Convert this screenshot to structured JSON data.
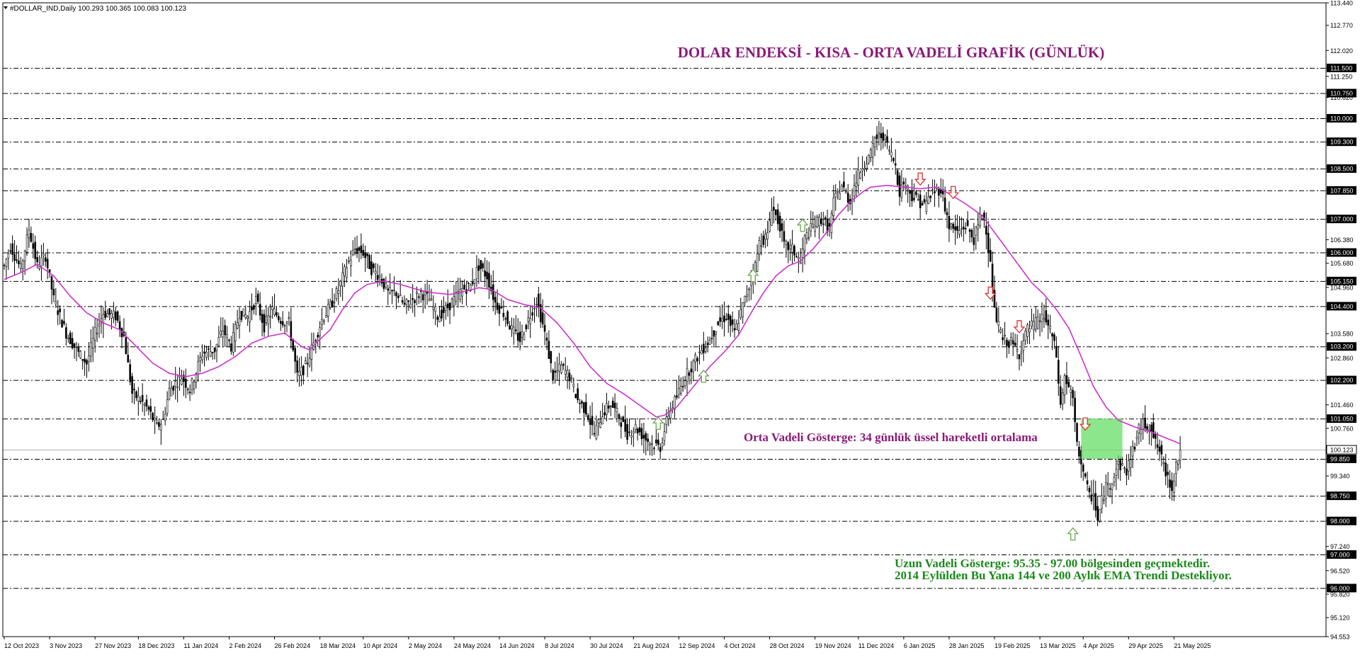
{
  "header": {
    "symbol_line": "#DOLLAR_IND,Daily  100.293 100.365 100.083 100.123"
  },
  "colors": {
    "background": "#ffffff",
    "candle": "#000000",
    "ema": "#cc33cc",
    "title": "#8b1a7a",
    "annotation_mid": "#8b1a7a",
    "annotation_long": "#1a8a1a",
    "up_arrow": "#6aa84f",
    "down_arrow": "#e03030",
    "box_fill": "#66dd66",
    "level_line": "#000000"
  },
  "chart_data": {
    "type": "candlestick",
    "symbol": "#DOLLAR_IND",
    "timeframe": "Daily",
    "title": "DOLAR ENDEKSİ - KISA - ORTA VADELİ GRAFİK (GÜNLÜK)",
    "ylim": [
      94.553,
      113.44
    ],
    "y_ticks": [
      "113.440",
      "112.770",
      "112.020",
      "111.500",
      "111.250",
      "110.750",
      "110.620",
      "110.000",
      "109.300",
      "108.500",
      "107.850",
      "107.000",
      "106.380",
      "106.000",
      "105.680",
      "105.150",
      "104.960",
      "104.400",
      "103.580",
      "103.200",
      "102.860",
      "102.200",
      "101.460",
      "101.050",
      "100.760",
      "100.123",
      "99.850",
      "99.340",
      "98.750",
      "98.000",
      "97.240",
      "97.000",
      "96.520",
      "96.000",
      "95.820",
      "95.120",
      "94.553"
    ],
    "x_ticks": [
      "12 Oct 2023",
      "3 Nov 2023",
      "27 Nov 2023",
      "18 Dec 2023",
      "11 Jan 2024",
      "2 Feb 2024",
      "26 Feb 2024",
      "18 Mar 2024",
      "10 Apr 2024",
      "2 May 2024",
      "24 May 2024",
      "14 Jun 2024",
      "8 Jul 2024",
      "30 Jul 2024",
      "21 Aug 2024",
      "12 Sep 2024",
      "4 Oct 2024",
      "28 Oct 2024",
      "19 Nov 2024",
      "11 Dec 2024",
      "6 Jan 2025",
      "28 Jan 2025",
      "19 Feb 2025",
      "13 Mar 2025",
      "4 Apr 2025",
      "29 Apr 2025",
      "21 May 2025"
    ],
    "levels": [
      111.5,
      110.75,
      110.0,
      109.3,
      108.5,
      107.85,
      107.0,
      106.0,
      105.15,
      104.4,
      103.2,
      102.2,
      101.05,
      99.85,
      98.75,
      98.0,
      97.0,
      96.0
    ],
    "current_price": 100.123,
    "price_path": [
      [
        0,
        105.6
      ],
      [
        3,
        106.2
      ],
      [
        8,
        105.5
      ],
      [
        12,
        106.7
      ],
      [
        16,
        105.6
      ],
      [
        20,
        105.9
      ],
      [
        24,
        104.6
      ],
      [
        30,
        103.6
      ],
      [
        36,
        103.0
      ],
      [
        40,
        102.7
      ],
      [
        44,
        103.6
      ],
      [
        48,
        104.2
      ],
      [
        54,
        104.1
      ],
      [
        58,
        103.5
      ],
      [
        62,
        101.8
      ],
      [
        66,
        101.6
      ],
      [
        70,
        101.3
      ],
      [
        74,
        100.8
      ],
      [
        77,
        101.0
      ],
      [
        80,
        101.9
      ],
      [
        86,
        102.3
      ],
      [
        90,
        101.9
      ],
      [
        96,
        103.0
      ],
      [
        102,
        103.1
      ],
      [
        106,
        103.7
      ],
      [
        110,
        103.2
      ],
      [
        114,
        104.2
      ],
      [
        118,
        104.1
      ],
      [
        122,
        104.6
      ],
      [
        126,
        103.8
      ],
      [
        130,
        104.3
      ],
      [
        134,
        104.0
      ],
      [
        138,
        103.9
      ],
      [
        142,
        102.3
      ],
      [
        146,
        102.6
      ],
      [
        150,
        103.3
      ],
      [
        154,
        104.0
      ],
      [
        158,
        104.4
      ],
      [
        162,
        104.9
      ],
      [
        166,
        105.6
      ],
      [
        170,
        106.1
      ],
      [
        174,
        106.0
      ],
      [
        178,
        105.5
      ],
      [
        182,
        105.3
      ],
      [
        186,
        104.8
      ],
      [
        190,
        104.8
      ],
      [
        194,
        104.4
      ],
      [
        198,
        104.6
      ],
      [
        202,
        104.8
      ],
      [
        206,
        104.6
      ],
      [
        210,
        104.1
      ],
      [
        214,
        104.3
      ],
      [
        218,
        104.6
      ],
      [
        222,
        104.9
      ],
      [
        226,
        105.0
      ],
      [
        230,
        105.6
      ],
      [
        234,
        105.3
      ],
      [
        238,
        104.5
      ],
      [
        242,
        104.2
      ],
      [
        246,
        103.7
      ],
      [
        250,
        103.4
      ],
      [
        254,
        104.0
      ],
      [
        258,
        104.6
      ],
      [
        262,
        103.6
      ],
      [
        266,
        102.3
      ],
      [
        270,
        102.6
      ],
      [
        274,
        102.3
      ],
      [
        278,
        101.6
      ],
      [
        282,
        101.3
      ],
      [
        286,
        100.6
      ],
      [
        290,
        101.2
      ],
      [
        294,
        101.5
      ],
      [
        298,
        101.1
      ],
      [
        302,
        100.6
      ],
      [
        306,
        100.8
      ],
      [
        310,
        100.5
      ],
      [
        314,
        100.3
      ],
      [
        318,
        100.2
      ],
      [
        322,
        101.2
      ],
      [
        326,
        101.7
      ],
      [
        330,
        102.3
      ],
      [
        334,
        102.7
      ],
      [
        338,
        103.1
      ],
      [
        342,
        103.4
      ],
      [
        346,
        103.9
      ],
      [
        350,
        104.1
      ],
      [
        354,
        103.6
      ],
      [
        358,
        104.4
      ],
      [
        362,
        105.2
      ],
      [
        364,
        105.6
      ],
      [
        366,
        106.3
      ],
      [
        370,
        106.5
      ],
      [
        372,
        107.4
      ],
      [
        376,
        106.8
      ],
      [
        378,
        106.2
      ],
      [
        382,
        106.1
      ],
      [
        386,
        105.7
      ],
      [
        388,
        106.4
      ],
      [
        392,
        106.8
      ],
      [
        396,
        107.0
      ],
      [
        400,
        106.7
      ],
      [
        402,
        107.5
      ],
      [
        406,
        108.0
      ],
      [
        410,
        107.5
      ],
      [
        412,
        108.0
      ],
      [
        416,
        108.6
      ],
      [
        420,
        108.9
      ],
      [
        422,
        109.4
      ],
      [
        426,
        109.5
      ],
      [
        428,
        109.2
      ],
      [
        432,
        108.6
      ],
      [
        434,
        107.8
      ],
      [
        436,
        108.1
      ],
      [
        440,
        107.7
      ],
      [
        442,
        107.6
      ],
      [
        446,
        107.4
      ],
      [
        450,
        107.8
      ],
      [
        454,
        107.9
      ],
      [
        458,
        106.8
      ],
      [
        462,
        106.6
      ],
      [
        466,
        106.8
      ],
      [
        470,
        106.4
      ],
      [
        474,
        107.2
      ],
      [
        476,
        106.7
      ],
      [
        478,
        105.6
      ],
      [
        480,
        104.2
      ],
      [
        482,
        103.8
      ],
      [
        484,
        103.4
      ],
      [
        488,
        103.3
      ],
      [
        492,
        103.0
      ],
      [
        496,
        103.7
      ],
      [
        500,
        103.9
      ],
      [
        504,
        104.1
      ],
      [
        508,
        103.5
      ],
      [
        510,
        102.9
      ],
      [
        512,
        101.4
      ],
      [
        514,
        102.3
      ],
      [
        518,
        101.6
      ],
      [
        520,
        100.2
      ],
      [
        522,
        99.8
      ],
      [
        524,
        99.2
      ],
      [
        526,
        98.7
      ],
      [
        528,
        98.8
      ],
      [
        530,
        98.0
      ],
      [
        532,
        98.6
      ],
      [
        534,
        99.0
      ],
      [
        536,
        99.1
      ],
      [
        540,
        99.7
      ],
      [
        544,
        99.5
      ],
      [
        548,
        100.3
      ],
      [
        550,
        100.7
      ],
      [
        552,
        100.9
      ],
      [
        556,
        100.8
      ],
      [
        558,
        100.3
      ],
      [
        560,
        100.1
      ],
      [
        562,
        99.6
      ],
      [
        564,
        99.3
      ],
      [
        566,
        99.0
      ],
      [
        568,
        99.7
      ],
      [
        570,
        100.1
      ]
    ],
    "ema_path": [
      [
        0,
        105.2
      ],
      [
        8,
        105.4
      ],
      [
        16,
        105.65
      ],
      [
        24,
        105.3
      ],
      [
        32,
        104.7
      ],
      [
        40,
        104.2
      ],
      [
        48,
        103.9
      ],
      [
        56,
        103.7
      ],
      [
        64,
        103.2
      ],
      [
        72,
        102.7
      ],
      [
        80,
        102.4
      ],
      [
        88,
        102.3
      ],
      [
        96,
        102.4
      ],
      [
        104,
        102.6
      ],
      [
        112,
        102.9
      ],
      [
        120,
        103.3
      ],
      [
        128,
        103.5
      ],
      [
        136,
        103.6
      ],
      [
        140,
        103.4
      ],
      [
        144,
        103.2
      ],
      [
        148,
        103.1
      ],
      [
        152,
        103.35
      ],
      [
        158,
        103.7
      ],
      [
        164,
        104.3
      ],
      [
        170,
        104.8
      ],
      [
        176,
        105.05
      ],
      [
        184,
        105.15
      ],
      [
        192,
        105.05
      ],
      [
        200,
        104.9
      ],
      [
        208,
        104.8
      ],
      [
        216,
        104.75
      ],
      [
        224,
        104.85
      ],
      [
        230,
        104.95
      ],
      [
        236,
        104.9
      ],
      [
        244,
        104.6
      ],
      [
        252,
        104.45
      ],
      [
        260,
        104.35
      ],
      [
        268,
        103.9
      ],
      [
        276,
        103.3
      ],
      [
        284,
        102.6
      ],
      [
        292,
        102.1
      ],
      [
        300,
        101.8
      ],
      [
        308,
        101.45
      ],
      [
        316,
        101.1
      ],
      [
        320,
        101.15
      ],
      [
        326,
        101.4
      ],
      [
        334,
        102.0
      ],
      [
        342,
        102.6
      ],
      [
        350,
        103.1
      ],
      [
        356,
        103.55
      ],
      [
        362,
        104.2
      ],
      [
        368,
        104.8
      ],
      [
        374,
        105.3
      ],
      [
        380,
        105.6
      ],
      [
        386,
        105.75
      ],
      [
        392,
        106.1
      ],
      [
        398,
        106.55
      ],
      [
        404,
        107.1
      ],
      [
        410,
        107.5
      ],
      [
        416,
        107.8
      ],
      [
        420,
        107.95
      ],
      [
        428,
        108.0
      ],
      [
        436,
        107.95
      ],
      [
        444,
        107.9
      ],
      [
        452,
        107.95
      ],
      [
        458,
        107.75
      ],
      [
        466,
        107.45
      ],
      [
        474,
        107.1
      ],
      [
        480,
        106.6
      ],
      [
        486,
        106.1
      ],
      [
        492,
        105.6
      ],
      [
        498,
        105.1
      ],
      [
        504,
        104.75
      ],
      [
        510,
        104.3
      ],
      [
        516,
        103.75
      ],
      [
        522,
        102.9
      ],
      [
        528,
        102.0
      ],
      [
        534,
        101.4
      ],
      [
        540,
        101.0
      ],
      [
        548,
        100.8
      ],
      [
        556,
        100.65
      ],
      [
        564,
        100.45
      ],
      [
        570,
        100.3
      ]
    ],
    "annotations": {
      "mid_term": "Orta Vadeli Gösterge: 34 günlük üssel hareketli ortalama",
      "long_term_1": "Uzun Vadeli Gösterge: 95.35 - 97.00 bölgesinden geçmektedir.",
      "long_term_2": "2014 Eylülden Bu Yana 144 ve 200 Aylık EMA Trendi Destekliyor."
    },
    "up_arrows": [
      [
        317,
        100.9
      ],
      [
        339,
        102.3
      ],
      [
        363,
        105.3
      ],
      [
        387,
        106.8
      ],
      [
        518,
        97.6
      ]
    ],
    "down_arrows": [
      [
        444,
        108.2
      ],
      [
        460,
        107.8
      ],
      [
        478,
        104.8
      ],
      [
        492,
        103.8
      ],
      [
        524,
        100.9
      ]
    ],
    "highlight_box": {
      "x_from": 522,
      "x_to": 542,
      "y_from": 99.85,
      "y_to": 101.05
    }
  }
}
